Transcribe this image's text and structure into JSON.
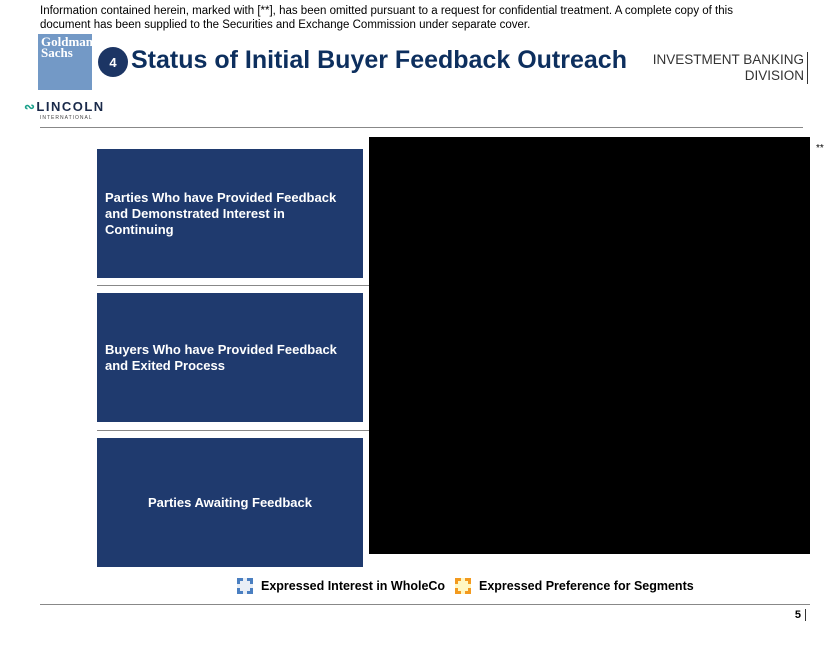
{
  "notice": "Information contained herein, marked with [**], has been omitted pursuant to a request for confidential treatment. A complete copy of this document has been supplied to the Securities and Exchange Commission under separate cover.",
  "header": {
    "logo": "Goldman Sachs",
    "section_number": "4",
    "title": "Status of Initial Buyer Feedback Outreach",
    "division_line1": "INVESTMENT BANKING",
    "division_line2": "DIVISION",
    "partner_logo": "LINCOLN",
    "partner_logo_sub": "INTERNATIONAL"
  },
  "categories": [
    {
      "label": "Parties Who have Provided Feedback and Demonstrated Interest in Continuing"
    },
    {
      "label": "Buyers Who have Provided Feedback and Exited Process"
    },
    {
      "label": "Parties Awaiting Feedback"
    }
  ],
  "redaction_marker": "**",
  "legend": [
    {
      "label": "Expressed Interest in WholeCo",
      "color": "#4a7fc1",
      "fill": "#e8eef6"
    },
    {
      "label": "Expressed Preference for Segments",
      "color": "#f39a1e",
      "fill": "#fff7c2"
    }
  ],
  "page_number": "5"
}
